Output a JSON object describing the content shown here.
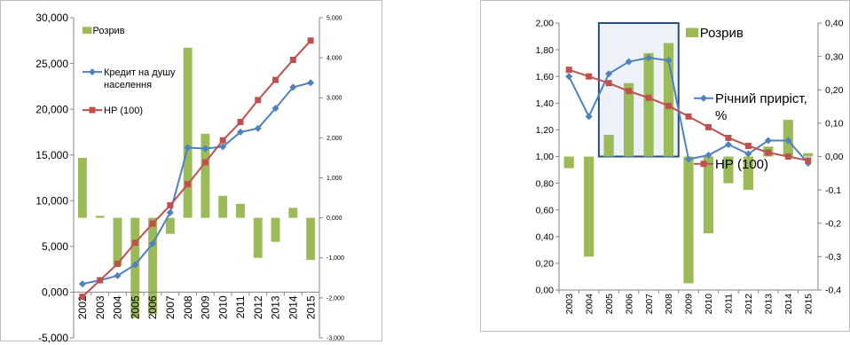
{
  "chart_data": [
    {
      "type": "bar",
      "categories": [
        "2002",
        "2003",
        "2004",
        "2005",
        "2006",
        "2007",
        "2008",
        "2009",
        "2010",
        "2011",
        "2012",
        "2013",
        "2014",
        "2015"
      ],
      "ylim": [
        -5,
        30
      ],
      "y_ticks": [
        "-5,000",
        "0,000",
        "5,000",
        "10,000",
        "15,000",
        "20,000",
        "25,000",
        "30,000"
      ],
      "y2lim": [
        -3,
        5
      ],
      "y2_ticks": [
        "-3,000",
        "-2,000",
        "-1,000",
        "0,000",
        "1,000",
        "2,000",
        "3,000",
        "4,000",
        "5,000"
      ],
      "legend": [
        "Розрив",
        "Кредит на душу населення",
        "НР (100)"
      ],
      "legend_position": "top-left",
      "grid": false,
      "series": [
        {
          "name": "Розрив",
          "axis": "right",
          "kind": "bar",
          "color": "#9bbb59",
          "values": [
            1.5,
            0.05,
            -1.2,
            -2.5,
            -2.4,
            -0.4,
            4.25,
            2.1,
            0.55,
            0.35,
            -1.0,
            -0.6,
            0.25,
            -1.05
          ]
        },
        {
          "name": "Кредит на душу населення",
          "axis": "left",
          "kind": "line",
          "color": "#4f81bd",
          "values": [
            0.9,
            1.3,
            1.8,
            3.0,
            5.3,
            8.7,
            15.8,
            15.7,
            15.9,
            17.5,
            17.9,
            20.1,
            22.4,
            22.9
          ]
        },
        {
          "name": "НР (100)",
          "axis": "left",
          "kind": "line",
          "color": "#c0504d",
          "values": [
            -0.5,
            1.3,
            3.1,
            5.4,
            7.5,
            9.5,
            11.8,
            14.2,
            16.6,
            18.6,
            21.0,
            23.2,
            25.4,
            27.5
          ]
        }
      ]
    },
    {
      "type": "bar",
      "categories": [
        "2003",
        "2004",
        "2005",
        "2006",
        "2007",
        "2008",
        "2009",
        "2010",
        "2011",
        "2012",
        "2013",
        "2014",
        "2015"
      ],
      "ylim": [
        0,
        2
      ],
      "y_ticks": [
        "0,00",
        "0,20",
        "0,40",
        "0,60",
        "0,80",
        "1,00",
        "1,20",
        "1,40",
        "1,60",
        "1,80",
        "2,00"
      ],
      "y2lim": [
        -0.4,
        0.4
      ],
      "y2_ticks": [
        "-0,4",
        "-0,3",
        "-0,2",
        "-0,1",
        "0,00",
        "0,10",
        "0,20",
        "0,30",
        "0,40"
      ],
      "legend": [
        "Розрив",
        "Річний приріст, %",
        "НР (100)"
      ],
      "legend_position": "top-right",
      "grid": false,
      "highlight_range": [
        "2005",
        "2008"
      ],
      "series": [
        {
          "name": "Розрив",
          "axis": "right",
          "kind": "bar",
          "color": "#9bbb59",
          "values": [
            -0.035,
            -0.3,
            0.065,
            0.22,
            0.31,
            0.34,
            -0.38,
            -0.23,
            -0.08,
            -0.1,
            0.03,
            0.11,
            0.01
          ]
        },
        {
          "name": "Річний приріст, %",
          "axis": "left",
          "kind": "line",
          "color": "#4f81bd",
          "values": [
            1.6,
            1.3,
            1.62,
            1.71,
            1.74,
            1.72,
            0.98,
            1.01,
            1.09,
            1.02,
            1.12,
            1.12,
            0.95
          ]
        },
        {
          "name": "НР (100)",
          "axis": "left",
          "kind": "line",
          "color": "#c0504d",
          "values": [
            1.65,
            1.6,
            1.55,
            1.49,
            1.44,
            1.38,
            1.3,
            1.22,
            1.14,
            1.08,
            1.03,
            1.0,
            0.97
          ]
        }
      ]
    }
  ]
}
